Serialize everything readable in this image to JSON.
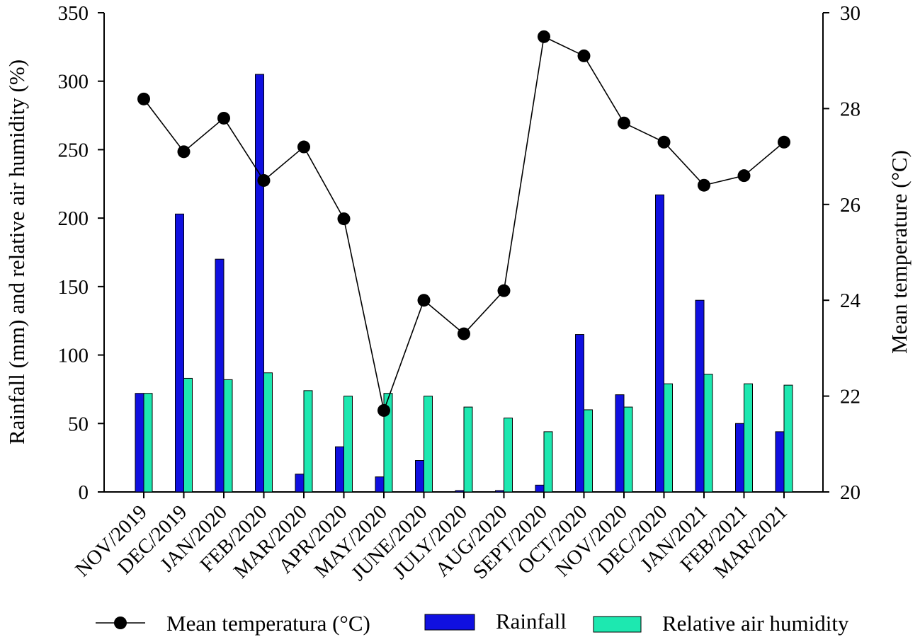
{
  "chart_data": {
    "type": "bar",
    "categories": [
      "NOV/2019",
      "DEC/2019",
      "JAN/2020",
      "FEB/2020",
      "MAR/2020",
      "APR/2020",
      "MAY/2020",
      "JUNE/2020",
      "JULY/2020",
      "AUG/2020",
      "SEPT/2020",
      "OCT/2020",
      "NOV/2020",
      "DEC/2020",
      "JAN/2021",
      "FEB/2021",
      "MAR/2021"
    ],
    "series": [
      {
        "name": "Rainfall",
        "kind": "bar",
        "axis": "left",
        "color": "#1010e0",
        "values": [
          72,
          203,
          170,
          305,
          13,
          33,
          11,
          23,
          1,
          1,
          5,
          115,
          71,
          217,
          140,
          50,
          44
        ]
      },
      {
        "name": "Relative air humidity",
        "kind": "bar",
        "axis": "left",
        "color": "#1de8b0",
        "values": [
          72,
          83,
          82,
          87,
          74,
          70,
          72,
          70,
          62,
          54,
          44,
          60,
          62,
          79,
          86,
          79,
          78
        ]
      },
      {
        "name": "Mean temperatura (°C)",
        "kind": "line",
        "axis": "right",
        "color": "#000000",
        "values": [
          28.2,
          27.1,
          27.8,
          26.5,
          27.2,
          25.7,
          21.7,
          24.0,
          23.3,
          24.2,
          29.5,
          29.1,
          27.7,
          27.3,
          26.4,
          26.6,
          27.3
        ]
      }
    ],
    "ylabel": "Rainfall (mm) and relative air humidity  (%)",
    "y2label": "Mean temperature (°C)",
    "ylim": [
      0,
      350
    ],
    "yticks": [
      0,
      50,
      100,
      150,
      200,
      250,
      300,
      350
    ],
    "y2lim": [
      20,
      30
    ],
    "y2ticks": [
      20,
      22,
      24,
      26,
      28,
      30
    ],
    "legend": {
      "placement": "bottom",
      "entries": [
        {
          "label": "Mean temperatura (°C)",
          "series": 2
        },
        {
          "label": "Rainfall",
          "series": 0
        },
        {
          "label": "Relative air humidity",
          "series": 1
        }
      ]
    }
  }
}
